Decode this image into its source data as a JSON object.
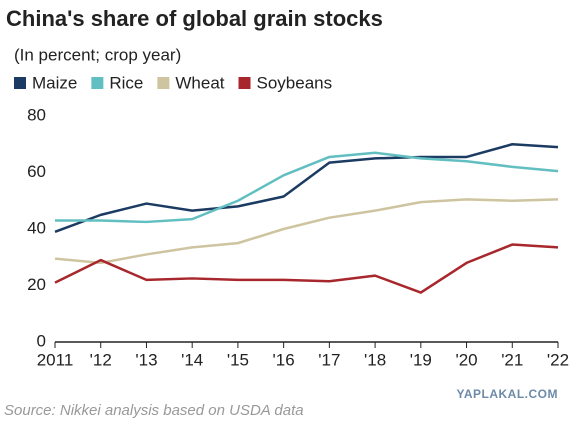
{
  "chart_data": {
    "type": "line",
    "title": "China's share of global grain stocks",
    "subtitle": "(In percent; crop year)",
    "categories": [
      "2011",
      "'12",
      "'13",
      "'14",
      "'15",
      "'16",
      "'17",
      "'18",
      "'19",
      "'20",
      "'21",
      "'22"
    ],
    "series": [
      {
        "name": "Maize",
        "color": "#1b3b62",
        "values": [
          39,
          45,
          49,
          46.5,
          48,
          51.5,
          63.5,
          65,
          65.5,
          65.5,
          70,
          69
        ]
      },
      {
        "name": "Rice",
        "color": "#62bfc1",
        "values": [
          43,
          43,
          42.5,
          43.5,
          50,
          59,
          65.5,
          67,
          65,
          64,
          62,
          60.5
        ]
      },
      {
        "name": "Wheat",
        "color": "#cfc4a0",
        "values": [
          29.5,
          28,
          31,
          33.5,
          35,
          40,
          44,
          46.5,
          49.5,
          50.5,
          50,
          50.5
        ]
      },
      {
        "name": "Soybeans",
        "color": "#a8272c",
        "values": [
          21,
          29,
          22,
          22.5,
          22,
          22,
          21.5,
          23.5,
          17.5,
          28,
          34.5,
          33.5
        ]
      }
    ],
    "ylim": [
      0,
      80
    ],
    "yticks": [
      0,
      20,
      40,
      60,
      80
    ],
    "grid": false,
    "legend": "top-left",
    "source": "Source: Nikkei analysis based on USDA data",
    "watermark": "YAPLAKAL.COM"
  }
}
